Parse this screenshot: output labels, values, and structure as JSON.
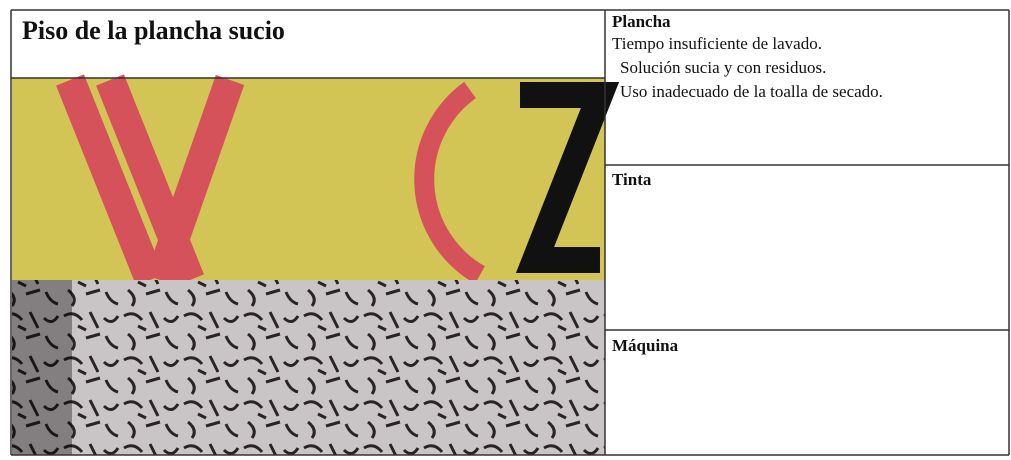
{
  "title": "Piso de la plancha sucio",
  "sections": [
    {
      "heading": "Plancha",
      "lines": [
        "Tiempo insuficiente de lavado.",
        "Solución sucia y con residuos.",
        "Uso inadecuado de la toalla de secado."
      ]
    },
    {
      "heading": "Tinta"
    },
    {
      "heading": "Máquina"
    }
  ]
}
